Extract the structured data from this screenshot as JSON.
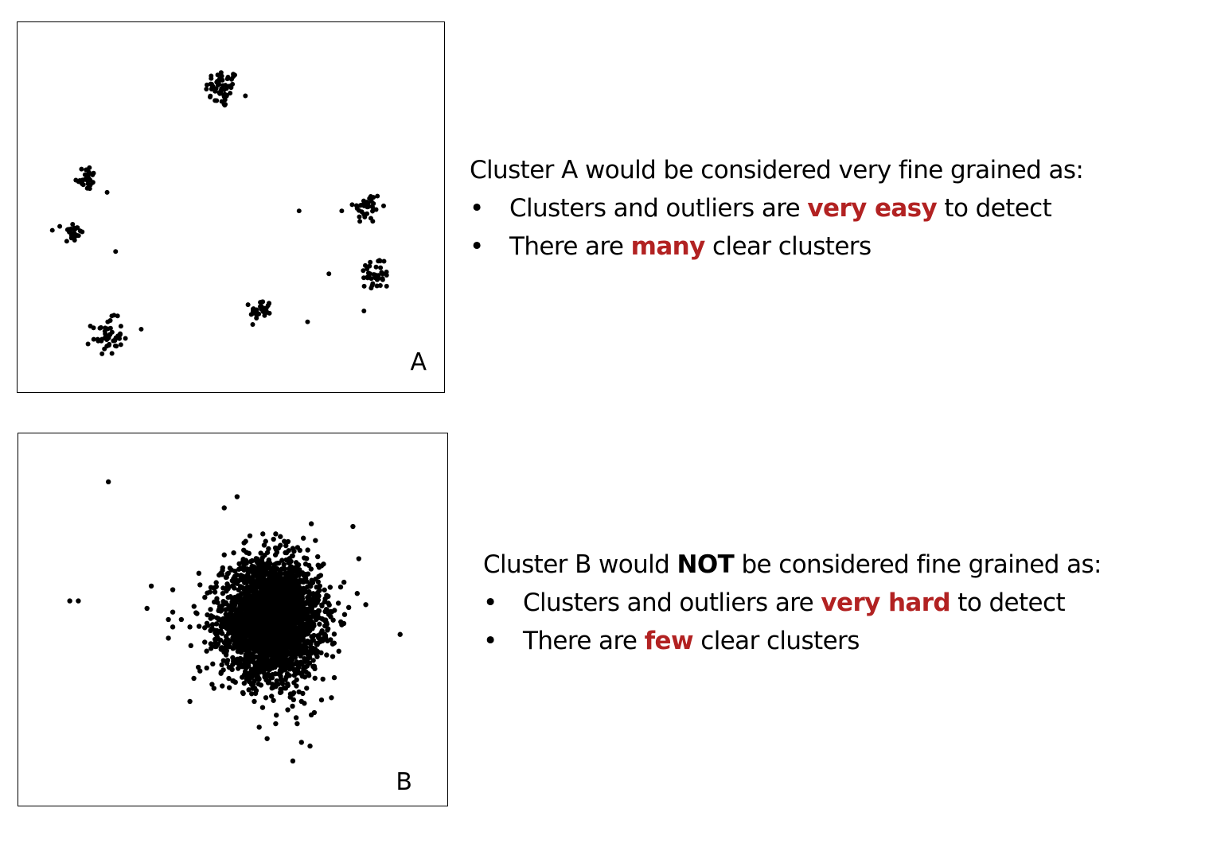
{
  "panels": {
    "a": {
      "label": "A",
      "heading": "Cluster A would be considered very fine grained as:",
      "bullets": [
        {
          "symbol": "•",
          "before": "Clusters and outliers are ",
          "highlight": "very easy",
          "after": " to detect"
        },
        {
          "symbol": "•",
          "before": "There are ",
          "highlight": "many",
          "after": " clear clusters"
        }
      ]
    },
    "b": {
      "label": "B",
      "heading_before": "Cluster B would ",
      "heading_bold": "NOT",
      "heading_after": " be considered fine grained as:",
      "bullets": [
        {
          "symbol": "•",
          "before": "Clusters and outliers are ",
          "highlight": "very hard",
          "after": " to detect"
        },
        {
          "symbol": "•",
          "before": "There are ",
          "highlight": "few",
          "after": " clear clusters"
        }
      ]
    }
  },
  "colors": {
    "highlight": "#b22222",
    "points": "#000000"
  },
  "chart_data": [
    {
      "type": "scatter",
      "title": "",
      "xlabel": "",
      "ylabel": "",
      "panel_label": "A",
      "xlim": [
        0,
        100
      ],
      "ylim": [
        0,
        100
      ],
      "grid": false,
      "clusters": [
        {
          "center": [
            48,
            82
          ],
          "spread": 2.6,
          "count": 55
        },
        {
          "center": [
            16,
            58
          ],
          "spread": 1.7,
          "count": 30
        },
        {
          "center": [
            13,
            43
          ],
          "spread": 1.6,
          "count": 28
        },
        {
          "center": [
            82,
            50
          ],
          "spread": 2.2,
          "count": 35
        },
        {
          "center": [
            84,
            32
          ],
          "spread": 2.4,
          "count": 40
        },
        {
          "center": [
            57,
            22
          ],
          "spread": 1.6,
          "count": 32
        },
        {
          "center": [
            21,
            15
          ],
          "spread": 2.4,
          "count": 50
        }
      ],
      "outliers": [
        [
          21,
          54
        ],
        [
          66,
          49
        ],
        [
          76,
          49
        ],
        [
          23,
          38
        ],
        [
          73,
          32
        ],
        [
          29,
          17
        ],
        [
          68,
          19
        ]
      ]
    },
    {
      "type": "scatter",
      "title": "",
      "xlabel": "",
      "ylabel": "",
      "panel_label": "B",
      "xlim": [
        0,
        100
      ],
      "ylim": [
        0,
        100
      ],
      "grid": false,
      "clusters": [
        {
          "center": [
            59,
            50
          ],
          "spread": 7.5,
          "count": 3200
        }
      ],
      "outliers": [
        [
          21,
          87
        ],
        [
          48,
          80
        ],
        [
          51,
          83
        ],
        [
          78,
          75
        ],
        [
          57,
          73
        ],
        [
          60,
          73
        ],
        [
          53,
          71
        ],
        [
          62,
          71
        ],
        [
          12,
          55
        ],
        [
          14,
          55
        ],
        [
          31,
          59
        ],
        [
          36,
          58
        ],
        [
          30,
          53
        ],
        [
          36,
          52
        ],
        [
          79,
          57
        ],
        [
          81,
          54
        ],
        [
          35,
          50
        ],
        [
          38,
          50
        ],
        [
          36,
          48
        ],
        [
          40,
          48
        ],
        [
          89,
          46
        ],
        [
          35,
          45
        ],
        [
          71,
          34
        ],
        [
          66,
          28
        ],
        [
          64,
          30
        ],
        [
          60,
          32
        ],
        [
          73,
          29
        ],
        [
          69,
          25
        ],
        [
          65,
          22
        ],
        [
          60,
          22
        ],
        [
          58,
          18
        ],
        [
          66,
          17
        ],
        [
          68,
          16
        ],
        [
          64,
          12
        ],
        [
          40,
          28
        ],
        [
          55,
          28
        ]
      ]
    }
  ]
}
